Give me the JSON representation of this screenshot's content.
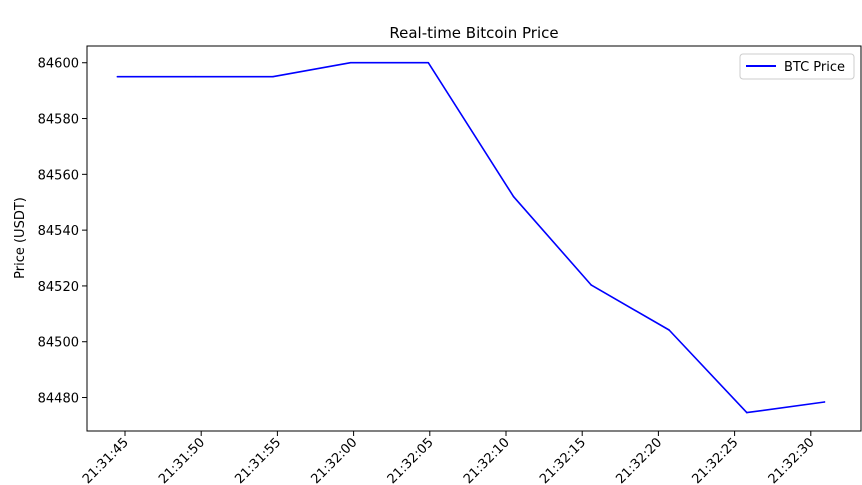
{
  "chart_data": {
    "type": "line",
    "title": "Real-time Bitcoin Price",
    "xlabel": "",
    "ylabel": "Price (USDT)",
    "x": [
      "21:31:44.5",
      "21:31:49.6",
      "21:31:54.7",
      "21:31:59.8",
      "21:32:04.9",
      "21:32:10.5",
      "21:32:15.6",
      "21:32:20.7",
      "21:32:25.8",
      "21:32:30.9"
    ],
    "x_ticks": [
      "21:31:45",
      "21:31:50",
      "21:31:55",
      "21:32:00",
      "21:32:05",
      "21:32:10",
      "21:32:15",
      "21:32:20",
      "21:32:25",
      "21:32:30"
    ],
    "y_ticks": [
      84480,
      84500,
      84520,
      84540,
      84560,
      84580,
      84600
    ],
    "ylim": [
      84468,
      84606
    ],
    "grid": false,
    "legend_position": "top-right",
    "series": [
      {
        "name": "BTC Price",
        "color": "#0000ff",
        "values": [
          84595,
          84595,
          84595,
          84600,
          84600,
          84552,
          84520.3,
          84504.2,
          84474.6,
          84478.4
        ]
      }
    ]
  }
}
